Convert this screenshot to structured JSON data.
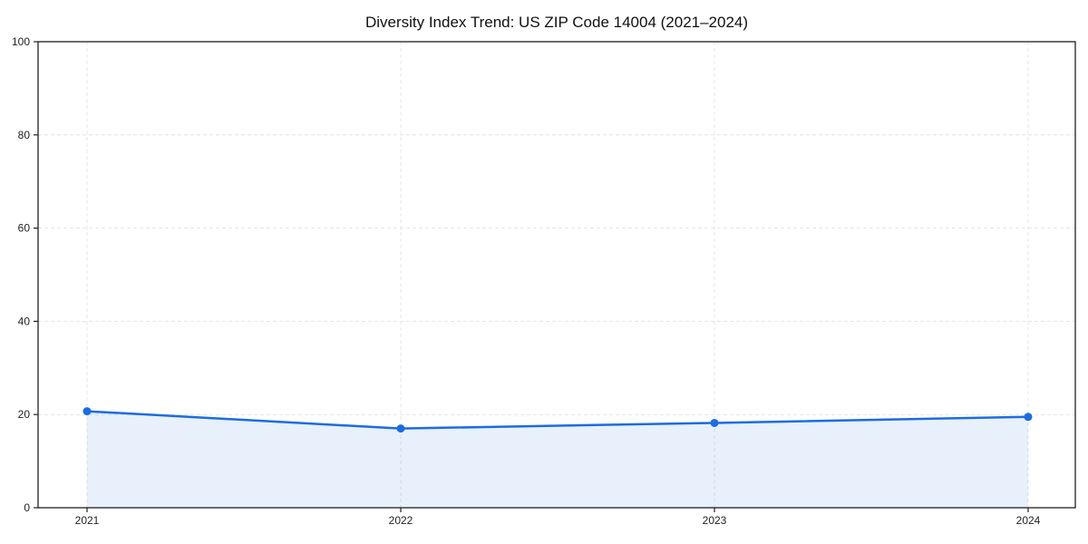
{
  "page": {
    "background": "#ffffff"
  },
  "chart_data": {
    "type": "line",
    "title": "Diversity Index Trend: US ZIP Code 14004 (2021–2024)",
    "categories": [
      "2021",
      "2022",
      "2023",
      "2024"
    ],
    "series": [
      {
        "name": "Diversity Index",
        "values": [
          20.7,
          17.0,
          18.2,
          19.5
        ]
      }
    ],
    "xlabel": "",
    "ylabel": "",
    "ylim": [
      0,
      100
    ],
    "yticks": [
      0,
      20,
      40,
      60,
      80,
      100
    ],
    "grid": "dashed-both-axes",
    "legend": "none",
    "area_fill": true,
    "marker": "circle",
    "colors": {
      "line": "#1b6ce0",
      "marker": "#1b6ce0",
      "area": "rgba(27,108,224,0.10)",
      "grid": "#e4e4e4",
      "axis": "#1f1f1f",
      "text": "#1a1a1a",
      "background": "#ffffff"
    }
  }
}
